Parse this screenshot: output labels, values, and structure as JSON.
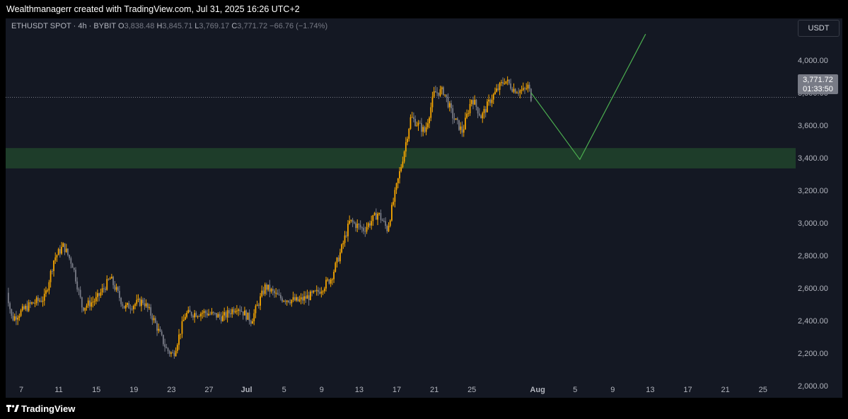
{
  "header": {
    "text": "Wealthmanagerr created with TradingView.com, Jul 31, 2025 16:26 UTC+2"
  },
  "footer": {
    "brand": "TradingView"
  },
  "legend": {
    "symbol": "ETHUSDT SPOT · 4h · BYBIT",
    "o_label": "O",
    "o_value": "3,838.48",
    "h_label": "H",
    "h_value": "3,845.71",
    "l_label": "L",
    "l_value": "3,769.17",
    "c_label": "C",
    "c_value": "3,771.72",
    "change": "−66.76 (−1.74%)"
  },
  "price_scale": {
    "currency": "USDT",
    "last_price": "3,771.72",
    "countdown": "01:33:50"
  },
  "colors": {
    "bull": "#f7a600",
    "bear": "#787b86",
    "zone": "#1e3d2a",
    "projection": "#4caf50",
    "background": "#141823"
  },
  "chart_data": {
    "type": "candlestick",
    "symbol": "ETHUSDT",
    "timeframe": "4h",
    "y_ticks": [
      "2,000.00",
      "2,200.00",
      "2,400.00",
      "2,600.00",
      "2,800.00",
      "3,000.00",
      "3,200.00",
      "3,400.00",
      "3,600.00",
      "3,800.00",
      "4,000.00"
    ],
    "y_tick_values": [
      2000,
      2200,
      2400,
      2600,
      2800,
      3000,
      3200,
      3400,
      3600,
      3800,
      4000
    ],
    "ylim": [
      1920,
      4160
    ],
    "x_ticks": [
      "7",
      "11",
      "15",
      "19",
      "23",
      "27",
      "Jul",
      "5",
      "9",
      "13",
      "17",
      "21",
      "25",
      "Aug",
      "5",
      "9",
      "13",
      "17",
      "21",
      "25"
    ],
    "x_tick_days": [
      7,
      11,
      15,
      19,
      23,
      27,
      31,
      35,
      39,
      43,
      47,
      51,
      55,
      62,
      66,
      70,
      74,
      78,
      82,
      86
    ],
    "xlim_days": [
      5.3,
      88.2
    ],
    "date_axis_origin": "Jun",
    "close_path": [
      {
        "day": 5.3,
        "price": 2640
      },
      {
        "day": 6.0,
        "price": 2410
      },
      {
        "day": 8.0,
        "price": 2500
      },
      {
        "day": 9.5,
        "price": 2540
      },
      {
        "day": 10.5,
        "price": 2780
      },
      {
        "day": 11.5,
        "price": 2860
      },
      {
        "day": 12.5,
        "price": 2740
      },
      {
        "day": 13.5,
        "price": 2480
      },
      {
        "day": 15.0,
        "price": 2530
      },
      {
        "day": 16.5,
        "price": 2660
      },
      {
        "day": 18.0,
        "price": 2480
      },
      {
        "day": 20.0,
        "price": 2520
      },
      {
        "day": 21.0,
        "price": 2420
      },
      {
        "day": 22.5,
        "price": 2220
      },
      {
        "day": 23.2,
        "price": 2190
      },
      {
        "day": 24.5,
        "price": 2440
      },
      {
        "day": 26.5,
        "price": 2450
      },
      {
        "day": 28.5,
        "price": 2420
      },
      {
        "day": 30.0,
        "price": 2490
      },
      {
        "day": 31.5,
        "price": 2400
      },
      {
        "day": 33.0,
        "price": 2610
      },
      {
        "day": 34.5,
        "price": 2540
      },
      {
        "day": 36.5,
        "price": 2520
      },
      {
        "day": 38.5,
        "price": 2570
      },
      {
        "day": 40.0,
        "price": 2660
      },
      {
        "day": 41.0,
        "price": 2820
      },
      {
        "day": 42.0,
        "price": 3010
      },
      {
        "day": 43.5,
        "price": 2960
      },
      {
        "day": 45.0,
        "price": 3060
      },
      {
        "day": 46.0,
        "price": 2960
      },
      {
        "day": 47.0,
        "price": 3230
      },
      {
        "day": 47.5,
        "price": 3360
      },
      {
        "day": 48.5,
        "price": 3650
      },
      {
        "day": 50.0,
        "price": 3560
      },
      {
        "day": 51.0,
        "price": 3800
      },
      {
        "day": 52.0,
        "price": 3810
      },
      {
        "day": 53.0,
        "price": 3650
      },
      {
        "day": 54.0,
        "price": 3560
      },
      {
        "day": 55.0,
        "price": 3770
      },
      {
        "day": 56.0,
        "price": 3650
      },
      {
        "day": 57.0,
        "price": 3760
      },
      {
        "day": 58.5,
        "price": 3880
      },
      {
        "day": 59.5,
        "price": 3820
      },
      {
        "day": 60.5,
        "price": 3810
      },
      {
        "day": 61.0,
        "price": 3840
      },
      {
        "day": 61.3,
        "price": 3771.72
      }
    ],
    "zone": {
      "low": 3335,
      "high": 3460
    },
    "last_price_line": 3771.72,
    "projection": [
      {
        "day": 61.3,
        "price": 3800
      },
      {
        "day": 66.5,
        "price": 3390
      },
      {
        "day": 73.5,
        "price": 4160
      }
    ]
  }
}
